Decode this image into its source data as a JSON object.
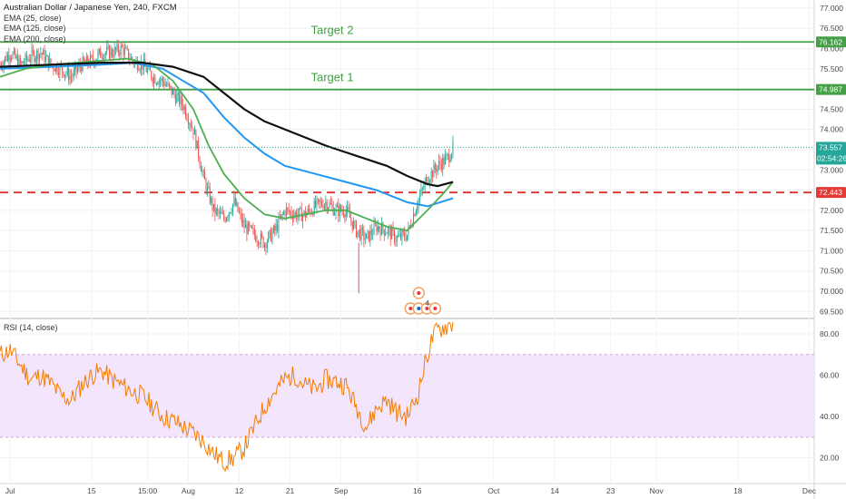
{
  "chart_data": {
    "type": "candlestick",
    "title": "Australian Dollar / Japanese Yen, 240, FXCM",
    "indicators": [
      "EMA (25, close)",
      "EMA (125, close)",
      "EMA (200, close)"
    ],
    "price_axis": {
      "ticks": [
        "77.000",
        "76.500",
        "76.000",
        "75.500",
        "75.000",
        "74.500",
        "74.000",
        "73.500",
        "73.000",
        "72.500",
        "72.000",
        "71.500",
        "71.000",
        "70.500",
        "70.000",
        "69.500"
      ],
      "ylim": [
        69.35,
        77.2
      ]
    },
    "x_axis": {
      "ticks": [
        "Jul",
        "15",
        "15:00",
        "Aug",
        "12",
        "21",
        "Sep",
        "16",
        "Oct",
        "14",
        "23",
        "Nov",
        "18",
        "Dec"
      ],
      "xlim": [
        0,
        160
      ]
    },
    "horizontal_levels": [
      {
        "price": 76.162,
        "label": "76.162",
        "color": "#43a047",
        "style": "solid",
        "annotation": "Target 2"
      },
      {
        "price": 74.987,
        "label": "74.987",
        "color": "#43a047",
        "style": "solid",
        "annotation": "Target 1"
      },
      {
        "price": 72.443,
        "label": "72.443",
        "color": "#e53935",
        "style": "dashed",
        "annotation": ""
      }
    ],
    "last_price": {
      "price": 73.557,
      "label": "73.557",
      "countdown": "02:54:26",
      "color": "#26a69a"
    },
    "price_path": [
      [
        0,
        75.6
      ],
      [
        2,
        75.9
      ],
      [
        4,
        75.6
      ],
      [
        6,
        75.8
      ],
      [
        8,
        75.9
      ],
      [
        10,
        75.6
      ],
      [
        12,
        75.5
      ],
      [
        14,
        75.3
      ],
      [
        16,
        75.6
      ],
      [
        18,
        75.7
      ],
      [
        20,
        75.9
      ],
      [
        22,
        75.9
      ],
      [
        24,
        76.0
      ],
      [
        26,
        75.7
      ],
      [
        28,
        75.6
      ],
      [
        30,
        75.3
      ],
      [
        32,
        75.2
      ],
      [
        34,
        74.9
      ],
      [
        36,
        74.6
      ],
      [
        38,
        74.0
      ],
      [
        40,
        72.8
      ],
      [
        42,
        72.0
      ],
      [
        44,
        71.8
      ],
      [
        46,
        72.2
      ],
      [
        48,
        71.6
      ],
      [
        50,
        71.4
      ],
      [
        52,
        71.2
      ],
      [
        54,
        71.5
      ],
      [
        56,
        72.0
      ],
      [
        58,
        71.9
      ],
      [
        60,
        71.9
      ],
      [
        62,
        72.1
      ],
      [
        64,
        72.2
      ],
      [
        66,
        72.0
      ],
      [
        68,
        72.0
      ],
      [
        70,
        71.5
      ],
      [
        72,
        71.3
      ],
      [
        74,
        71.6
      ],
      [
        76,
        71.5
      ],
      [
        78,
        71.3
      ],
      [
        80,
        71.4
      ],
      [
        82,
        72.2
      ],
      [
        84,
        72.8
      ],
      [
        86,
        73.1
      ],
      [
        88,
        73.3
      ],
      [
        89,
        73.56
      ]
    ],
    "ema_25": [
      [
        0,
        75.3
      ],
      [
        5,
        75.5
      ],
      [
        10,
        75.6
      ],
      [
        15,
        75.65
      ],
      [
        20,
        75.7
      ],
      [
        25,
        75.75
      ],
      [
        30,
        75.6
      ],
      [
        34,
        75.2
      ],
      [
        38,
        74.5
      ],
      [
        41,
        73.6
      ],
      [
        44,
        72.9
      ],
      [
        48,
        72.3
      ],
      [
        52,
        71.9
      ],
      [
        56,
        71.8
      ],
      [
        60,
        71.9
      ],
      [
        64,
        72.0
      ],
      [
        68,
        72.0
      ],
      [
        72,
        71.8
      ],
      [
        76,
        71.6
      ],
      [
        80,
        71.5
      ],
      [
        84,
        72.0
      ],
      [
        87,
        72.4
      ],
      [
        89,
        72.7
      ]
    ],
    "ema_125": [
      [
        0,
        75.5
      ],
      [
        10,
        75.55
      ],
      [
        20,
        75.6
      ],
      [
        26,
        75.65
      ],
      [
        32,
        75.5
      ],
      [
        36,
        75.2
      ],
      [
        40,
        74.9
      ],
      [
        44,
        74.3
      ],
      [
        48,
        73.8
      ],
      [
        52,
        73.4
      ],
      [
        56,
        73.1
      ],
      [
        62,
        72.9
      ],
      [
        68,
        72.7
      ],
      [
        74,
        72.5
      ],
      [
        80,
        72.2
      ],
      [
        84,
        72.1
      ],
      [
        89,
        72.3
      ]
    ],
    "ema_200": [
      [
        0,
        75.55
      ],
      [
        10,
        75.6
      ],
      [
        20,
        75.65
      ],
      [
        28,
        75.65
      ],
      [
        34,
        75.55
      ],
      [
        40,
        75.3
      ],
      [
        44,
        74.9
      ],
      [
        48,
        74.5
      ],
      [
        52,
        74.2
      ],
      [
        58,
        73.9
      ],
      [
        64,
        73.6
      ],
      [
        70,
        73.35
      ],
      [
        76,
        73.1
      ],
      [
        80,
        72.85
      ],
      [
        84,
        72.65
      ],
      [
        86,
        72.6
      ],
      [
        89,
        72.7
      ]
    ],
    "rsi": {
      "label": "RSI (14, close)",
      "ticks": [
        "80.00",
        "60.00",
        "40.00",
        "20.00"
      ],
      "ylim": [
        8,
        87
      ],
      "band": [
        30,
        70
      ],
      "values": [
        [
          0,
          70
        ],
        [
          2,
          72
        ],
        [
          4,
          65
        ],
        [
          6,
          58
        ],
        [
          8,
          60
        ],
        [
          10,
          56
        ],
        [
          12,
          50
        ],
        [
          14,
          48
        ],
        [
          16,
          55
        ],
        [
          18,
          60
        ],
        [
          20,
          62
        ],
        [
          22,
          58
        ],
        [
          24,
          55
        ],
        [
          26,
          52
        ],
        [
          28,
          50
        ],
        [
          30,
          45
        ],
        [
          32,
          40
        ],
        [
          34,
          38
        ],
        [
          36,
          35
        ],
        [
          38,
          32
        ],
        [
          40,
          28
        ],
        [
          42,
          22
        ],
        [
          44,
          18
        ],
        [
          46,
          20
        ],
        [
          48,
          25
        ],
        [
          50,
          35
        ],
        [
          52,
          45
        ],
        [
          54,
          52
        ],
        [
          56,
          58
        ],
        [
          58,
          60
        ],
        [
          60,
          55
        ],
        [
          62,
          53
        ],
        [
          64,
          58
        ],
        [
          66,
          57
        ],
        [
          68,
          55
        ],
        [
          70,
          45
        ],
        [
          72,
          35
        ],
        [
          74,
          44
        ],
        [
          76,
          48
        ],
        [
          78,
          42
        ],
        [
          80,
          40
        ],
        [
          82,
          50
        ],
        [
          84,
          70
        ],
        [
          85,
          78
        ],
        [
          86,
          82
        ],
        [
          88,
          84
        ],
        [
          89,
          85
        ]
      ]
    }
  },
  "legend": {
    "title": "Australian Dollar / Japanese Yen, 240, FXCM",
    "ema25": "EMA (25, close)",
    "ema125": "EMA (125, close)",
    "ema200": "EMA (200, close)"
  },
  "colors": {
    "up": "#26a69a",
    "down": "#ef5350",
    "ema25": "#4caf50",
    "ema125": "#2196f3",
    "ema200": "#111111",
    "rsi": "#f57c00",
    "rsi_band": "#f3e5fb",
    "target": "#43a047",
    "stop": "#e53935"
  },
  "events_badge": {
    "count": "4"
  }
}
